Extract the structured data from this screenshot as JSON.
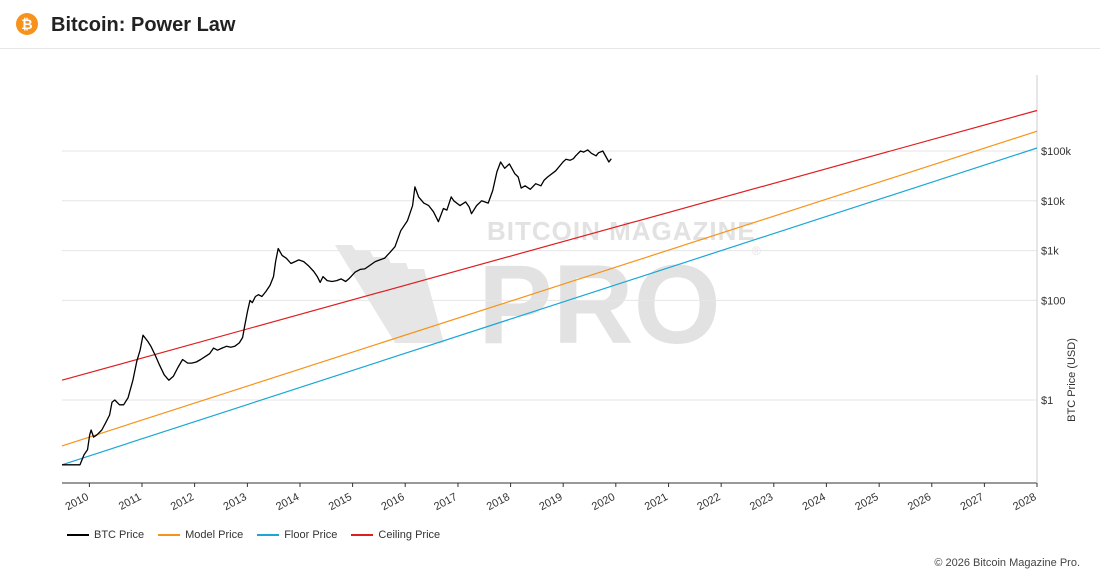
{
  "header": {
    "title": "Bitcoin: Power Law",
    "logo_glyph": "₿",
    "logo_color": "#f7931a"
  },
  "watermark": {
    "line1": "BITCOIN MAGAZINE",
    "line2": "PRO",
    "mark": "®"
  },
  "footer": {
    "copyright": "© 2026 Bitcoin Magazine Pro."
  },
  "chart_data": {
    "type": "line",
    "title": "Bitcoin: Power Law",
    "xlabel": "",
    "ylabel": "BTC Price (USD)",
    "y_scale": "log",
    "y_ticks": [
      {
        "value": 1,
        "label": "$1"
      },
      {
        "value": 100,
        "label": "$100"
      },
      {
        "value": 1000,
        "label": "$1k"
      },
      {
        "value": 10000,
        "label": "$10k"
      },
      {
        "value": 100000,
        "label": "$100k"
      }
    ],
    "x_ticks": [
      "2010",
      "2011",
      "2012",
      "2013",
      "2014",
      "2015",
      "2016",
      "2017",
      "2018",
      "2019",
      "2020",
      "2021",
      "2022",
      "2023",
      "2024",
      "2025",
      "2026",
      "2027",
      "2028"
    ],
    "grid": true,
    "legend_position": "bottom-left",
    "series": [
      {
        "name": "BTC Price",
        "color": "#000000",
        "points": [
          [
            "2009-06-25",
            0.05
          ],
          [
            "2009-08-16",
            0.05
          ],
          [
            "2009-09-23",
            0.05
          ],
          [
            "2009-10-28",
            0.05
          ],
          [
            "2009-11-25",
            0.08
          ],
          [
            "2009-12-19",
            0.1
          ],
          [
            "2010-01-03",
            0.2
          ],
          [
            "2010-01-13",
            0.25
          ],
          [
            "2010-01-30",
            0.18
          ],
          [
            "2010-02-23",
            0.2
          ],
          [
            "2010-03-28",
            0.25
          ],
          [
            "2010-04-24",
            0.35
          ],
          [
            "2010-05-21",
            0.5
          ],
          [
            "2010-06-07",
            0.9
          ],
          [
            "2010-06-26",
            1.0
          ],
          [
            "2010-07-29",
            0.8
          ],
          [
            "2010-08-26",
            0.8
          ],
          [
            "2010-09-26",
            1.1
          ],
          [
            "2010-10-30",
            2.5
          ],
          [
            "2010-11-26",
            6
          ],
          [
            "2010-12-19",
            10
          ],
          [
            "2011-01-08",
            20
          ],
          [
            "2011-02-10",
            15
          ],
          [
            "2011-03-04",
            12
          ],
          [
            "2011-04-02",
            8
          ],
          [
            "2011-05-03",
            5
          ],
          [
            "2011-06-04",
            3.2
          ],
          [
            "2011-07-06",
            2.5
          ],
          [
            "2011-08-07",
            3
          ],
          [
            "2011-09-07",
            4.5
          ],
          [
            "2011-10-10",
            6.5
          ],
          [
            "2011-11-14",
            5.5
          ],
          [
            "2011-12-12",
            5.5
          ],
          [
            "2012-01-13",
            5.8
          ],
          [
            "2012-02-12",
            6.5
          ],
          [
            "2012-03-16",
            7.5
          ],
          [
            "2012-04-14",
            8.5
          ],
          [
            "2012-05-11",
            11
          ],
          [
            "2012-06-08",
            10
          ],
          [
            "2012-07-09",
            11
          ],
          [
            "2012-08-09",
            12
          ],
          [
            "2012-09-08",
            11.5
          ],
          [
            "2012-10-05",
            12
          ],
          [
            "2012-11-06",
            14
          ],
          [
            "2012-11-29",
            18
          ],
          [
            "2012-12-13",
            30
          ],
          [
            "2013-01-02",
            60
          ],
          [
            "2013-01-19",
            100
          ],
          [
            "2013-02-04",
            90
          ],
          [
            "2013-02-26",
            120
          ],
          [
            "2013-03-19",
            130
          ],
          [
            "2013-04-12",
            120
          ],
          [
            "2013-05-09",
            150
          ],
          [
            "2013-06-07",
            200
          ],
          [
            "2013-07-01",
            300
          ],
          [
            "2013-07-16",
            600
          ],
          [
            "2013-08-03",
            1100
          ],
          [
            "2013-08-30",
            800
          ],
          [
            "2013-09-29",
            700
          ],
          [
            "2013-10-31",
            550
          ],
          [
            "2013-11-28",
            600
          ],
          [
            "2013-12-24",
            650
          ],
          [
            "2014-01-27",
            600
          ],
          [
            "2014-02-28",
            500
          ],
          [
            "2014-04-07",
            380
          ],
          [
            "2014-05-01",
            300
          ],
          [
            "2014-05-21",
            230
          ],
          [
            "2014-06-10",
            300
          ],
          [
            "2014-07-09",
            250
          ],
          [
            "2014-08-12",
            240
          ],
          [
            "2014-09-13",
            250
          ],
          [
            "2014-10-14",
            270
          ],
          [
            "2014-11-14",
            240
          ],
          [
            "2014-12-11",
            280
          ],
          [
            "2015-01-19",
            370
          ],
          [
            "2015-02-23",
            420
          ],
          [
            "2015-03-27",
            430
          ],
          [
            "2015-04-28",
            500
          ],
          [
            "2015-06-07",
            600
          ],
          [
            "2015-07-09",
            650
          ],
          [
            "2015-08-10",
            700
          ],
          [
            "2015-09-14",
            900
          ],
          [
            "2015-10-22",
            1200
          ],
          [
            "2015-12-01",
            2500
          ],
          [
            "2016-01-17",
            4000
          ],
          [
            "2016-02-21",
            8000
          ],
          [
            "2016-03-08",
            19000
          ],
          [
            "2016-04-03",
            12000
          ],
          [
            "2016-05-09",
            9000
          ],
          [
            "2016-06-12",
            8000
          ],
          [
            "2016-07-15",
            6000
          ],
          [
            "2016-08-18",
            3800
          ],
          [
            "2016-09-22",
            7000
          ],
          [
            "2016-10-16",
            6500
          ],
          [
            "2016-11-15",
            12000
          ],
          [
            "2016-12-03",
            10000
          ],
          [
            "2017-01-15",
            8000
          ],
          [
            "2017-02-23",
            9500
          ],
          [
            "2017-03-20",
            7500
          ],
          [
            "2017-04-05",
            5500
          ],
          [
            "2017-05-10",
            8000
          ],
          [
            "2017-06-14",
            10000
          ],
          [
            "2017-07-30",
            9000
          ],
          [
            "2017-08-30",
            16000
          ],
          [
            "2017-09-28",
            38000
          ],
          [
            "2017-10-24",
            60000
          ],
          [
            "2017-11-21",
            45000
          ],
          [
            "2017-12-24",
            55000
          ],
          [
            "2018-01-30",
            35000
          ],
          [
            "2018-02-23",
            30000
          ],
          [
            "2018-03-16",
            18000
          ],
          [
            "2018-04-12",
            20000
          ],
          [
            "2018-05-18",
            17000
          ],
          [
            "2018-06-24",
            22000
          ],
          [
            "2018-07-30",
            20000
          ],
          [
            "2018-08-22",
            26000
          ],
          [
            "2018-09-15",
            30000
          ],
          [
            "2018-11-10",
            40000
          ],
          [
            "2018-12-31",
            60000
          ],
          [
            "2019-01-20",
            68000
          ],
          [
            "2019-02-17",
            65000
          ],
          [
            "2019-03-13",
            70000
          ],
          [
            "2019-03-29",
            80000
          ],
          [
            "2019-05-01",
            100000
          ],
          [
            "2019-05-23",
            95000
          ],
          [
            "2019-06-20",
            105000
          ],
          [
            "2019-07-16",
            90000
          ],
          [
            "2019-08-17",
            80000
          ],
          [
            "2019-09-03",
            92000
          ],
          [
            "2019-10-03",
            100000
          ],
          [
            "2019-11-14",
            60000
          ],
          [
            "2019-12-01",
            70000
          ]
        ]
      },
      {
        "name": "Model Price",
        "color": "#f7931a",
        "points": [
          [
            "2009-06-25",
            0.12
          ],
          [
            "2028-01-01",
            250000
          ]
        ]
      },
      {
        "name": "Floor Price",
        "color": "#1ba7d6",
        "points": [
          [
            "2009-06-25",
            0.05
          ],
          [
            "2028-01-01",
            115000
          ]
        ]
      },
      {
        "name": "Ceiling Price",
        "color": "#dd1f22",
        "points": [
          [
            "2009-06-25",
            2.5
          ],
          [
            "2028-01-01",
            650000
          ]
        ]
      }
    ]
  }
}
